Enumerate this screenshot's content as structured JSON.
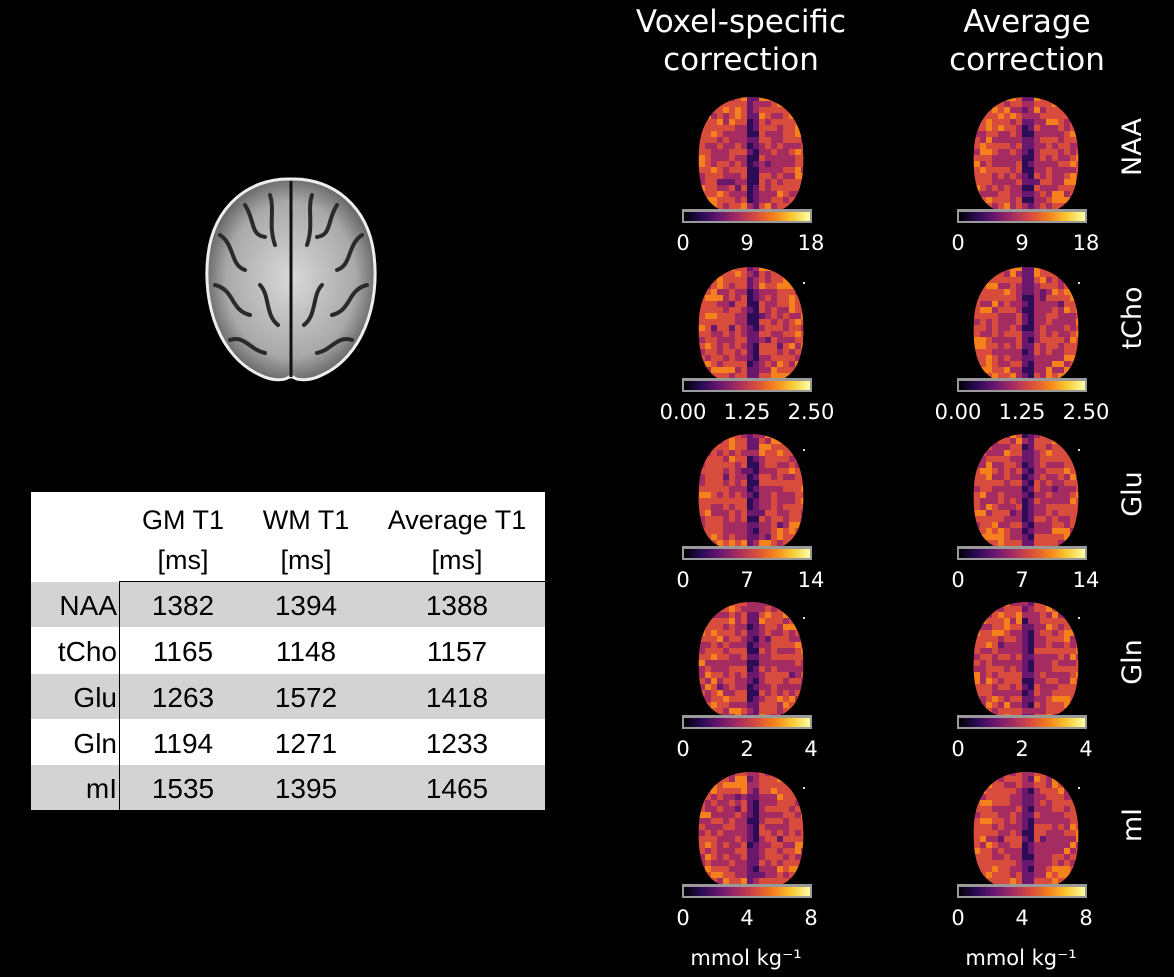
{
  "columns": {
    "left": [
      "Voxel-specific",
      "correction"
    ],
    "right": [
      "Average",
      "correction"
    ]
  },
  "rows": [
    {
      "label": "NAA",
      "ticks": [
        "0",
        "9",
        "18"
      ]
    },
    {
      "label": "tCho",
      "ticks": [
        "0.00",
        "1.25",
        "2.50"
      ]
    },
    {
      "label": "Glu",
      "ticks": [
        "0",
        "7",
        "14"
      ]
    },
    {
      "label": "Gln",
      "ticks": [
        "0",
        "2",
        "4"
      ]
    },
    {
      "label": "mI",
      "ticks": [
        "0",
        "4",
        "8"
      ]
    }
  ],
  "unit": "mmol kg⁻¹",
  "colormap": [
    "#000004",
    "#2c0b57",
    "#6a176e",
    "#a52c60",
    "#d84c3e",
    "#f5811d",
    "#f9c932",
    "#fcffa4"
  ],
  "table": {
    "headers": [
      [
        "GM T1",
        "[ms]"
      ],
      [
        "WM T1",
        "[ms]"
      ],
      [
        "Average T1",
        "[ms]"
      ]
    ],
    "rows": [
      {
        "name": "NAA",
        "values": [
          "1382",
          "1394",
          "1388"
        ]
      },
      {
        "name": "tCho",
        "values": [
          "1165",
          "1148",
          "1157"
        ]
      },
      {
        "name": "Glu",
        "values": [
          "1263",
          "1572",
          "1418"
        ]
      },
      {
        "name": "Gln",
        "values": [
          "1194",
          "1271",
          "1233"
        ]
      },
      {
        "name": "mI",
        "values": [
          "1535",
          "1395",
          "1465"
        ]
      }
    ]
  }
}
